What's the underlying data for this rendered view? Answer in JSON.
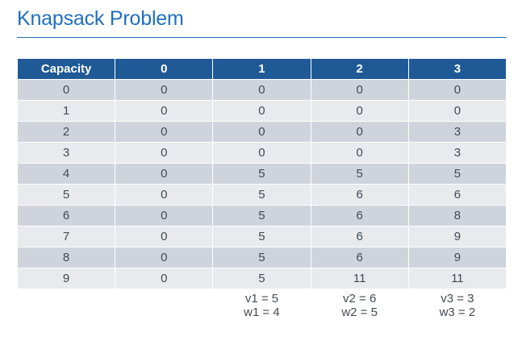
{
  "title": "Knapsack Problem",
  "table": {
    "headers": [
      "Capacity",
      "0",
      "1",
      "2",
      "3"
    ],
    "rows": [
      [
        "0",
        "0",
        "0",
        "0",
        "0"
      ],
      [
        "1",
        "0",
        "0",
        "0",
        "0"
      ],
      [
        "2",
        "0",
        "0",
        "0",
        "3"
      ],
      [
        "3",
        "0",
        "0",
        "0",
        "3"
      ],
      [
        "4",
        "0",
        "5",
        "5",
        "5"
      ],
      [
        "5",
        "0",
        "5",
        "6",
        "6"
      ],
      [
        "6",
        "0",
        "5",
        "6",
        "8"
      ],
      [
        "7",
        "0",
        "5",
        "6",
        "9"
      ],
      [
        "8",
        "0",
        "5",
        "6",
        "9"
      ],
      [
        "9",
        "0",
        "5",
        "11",
        "11"
      ]
    ],
    "items": [
      {
        "value": "v1 = 5",
        "weight": "w1 = 4"
      },
      {
        "value": "v2 = 6",
        "weight": "w2 = 5"
      },
      {
        "value": "v3 = 3",
        "weight": "w3 = 2"
      }
    ]
  },
  "colors": {
    "title": "#1f6fbf",
    "header_bg": "#1f5a96",
    "row_dark": "#cfd4dc",
    "row_light": "#e8eaee"
  }
}
